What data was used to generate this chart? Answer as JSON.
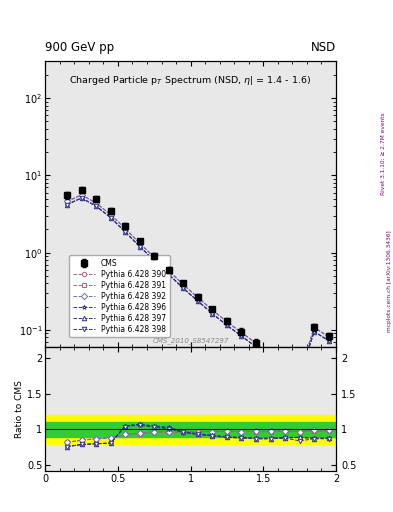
{
  "title_top_left": "900 GeV pp",
  "title_top_right": "NSD",
  "main_title": "Charged Particle p$_T$ Spectrum (NSD, $\\eta$| = 1.4 - 1.6)",
  "right_label_top": "Rivet 3.1.10; ≥ 2.7M events",
  "right_label_bot": "mcplots.cern.ch [arXiv:1306.3436]",
  "dataset_label": "CMS_2010_S8547297",
  "ylabel_ratio": "Ratio to CMS",
  "xlim": [
    0,
    2
  ],
  "ylim_main_log": [
    0.06,
    300
  ],
  "ylim_ratio": [
    0.42,
    2.15
  ],
  "cms_x": [
    0.15,
    0.25,
    0.35,
    0.45,
    0.55,
    0.65,
    0.75,
    0.85,
    0.95,
    1.05,
    1.15,
    1.25,
    1.35,
    1.45,
    1.55,
    1.65,
    1.75,
    1.85,
    1.95
  ],
  "cms_y": [
    5.5,
    6.5,
    5.0,
    3.5,
    2.2,
    1.4,
    0.9,
    0.6,
    0.4,
    0.27,
    0.185,
    0.13,
    0.095,
    0.068,
    0.05,
    0.037,
    0.028,
    0.108,
    0.082
  ],
  "cms_yerr": [
    0.55,
    0.55,
    0.45,
    0.32,
    0.2,
    0.12,
    0.08,
    0.05,
    0.035,
    0.025,
    0.015,
    0.012,
    0.009,
    0.007,
    0.005,
    0.004,
    0.003,
    0.012,
    0.009
  ],
  "pythia_x": [
    0.15,
    0.25,
    0.35,
    0.45,
    0.55,
    0.65,
    0.75,
    0.85,
    0.95,
    1.05,
    1.15,
    1.25,
    1.35,
    1.45,
    1.55,
    1.65,
    1.75,
    1.85,
    1.95
  ],
  "py390_y": [
    4.6,
    5.6,
    4.4,
    3.1,
    2.05,
    1.32,
    0.87,
    0.58,
    0.385,
    0.262,
    0.18,
    0.127,
    0.092,
    0.067,
    0.049,
    0.037,
    0.027,
    0.107,
    0.081
  ],
  "py391_y": [
    4.6,
    5.6,
    4.4,
    3.1,
    2.05,
    1.32,
    0.87,
    0.58,
    0.385,
    0.262,
    0.18,
    0.127,
    0.092,
    0.067,
    0.049,
    0.037,
    0.027,
    0.107,
    0.081
  ],
  "py392_y": [
    4.6,
    5.6,
    4.4,
    3.1,
    2.05,
    1.32,
    0.87,
    0.58,
    0.385,
    0.262,
    0.18,
    0.127,
    0.092,
    0.067,
    0.049,
    0.037,
    0.027,
    0.107,
    0.081
  ],
  "py396_y": [
    4.2,
    5.1,
    4.0,
    2.85,
    1.85,
    1.2,
    0.79,
    0.52,
    0.345,
    0.235,
    0.162,
    0.114,
    0.083,
    0.06,
    0.044,
    0.033,
    0.025,
    0.095,
    0.072
  ],
  "py397_y": [
    4.2,
    5.1,
    4.0,
    2.85,
    1.85,
    1.2,
    0.79,
    0.52,
    0.345,
    0.235,
    0.162,
    0.114,
    0.083,
    0.06,
    0.044,
    0.033,
    0.025,
    0.095,
    0.072
  ],
  "py398_y": [
    4.2,
    5.1,
    4.0,
    2.85,
    1.85,
    1.2,
    0.79,
    0.52,
    0.345,
    0.235,
    0.162,
    0.114,
    0.083,
    0.06,
    0.044,
    0.033,
    0.025,
    0.095,
    0.072
  ],
  "ratio390": [
    0.82,
    0.85,
    0.87,
    0.88,
    0.93,
    0.94,
    0.96,
    0.96,
    0.96,
    0.97,
    0.97,
    0.97,
    0.97,
    0.97,
    0.97,
    0.98,
    0.97,
    0.98,
    0.98
  ],
  "ratio391": [
    0.82,
    0.85,
    0.87,
    0.88,
    0.93,
    0.94,
    0.96,
    0.96,
    0.96,
    0.97,
    0.97,
    0.97,
    0.97,
    0.97,
    0.97,
    0.98,
    0.97,
    0.98,
    0.98
  ],
  "ratio392": [
    0.82,
    0.85,
    0.87,
    0.88,
    0.93,
    0.95,
    0.97,
    0.97,
    0.97,
    0.97,
    0.97,
    0.98,
    0.97,
    0.98,
    0.98,
    0.98,
    0.97,
    0.99,
    0.99
  ],
  "ratio396": [
    0.76,
    0.79,
    0.8,
    0.81,
    1.05,
    1.07,
    1.05,
    1.03,
    0.97,
    0.94,
    0.92,
    0.9,
    0.89,
    0.88,
    0.88,
    0.89,
    0.89,
    0.88,
    0.88
  ],
  "ratio397": [
    0.76,
    0.79,
    0.8,
    0.81,
    1.05,
    1.07,
    1.04,
    1.02,
    0.96,
    0.93,
    0.91,
    0.89,
    0.88,
    0.87,
    0.87,
    0.88,
    0.89,
    0.87,
    0.88
  ],
  "ratio398": [
    0.76,
    0.79,
    0.8,
    0.81,
    1.04,
    1.06,
    1.03,
    1.01,
    0.96,
    0.93,
    0.91,
    0.89,
    0.88,
    0.87,
    0.87,
    0.88,
    0.84,
    0.87,
    0.87
  ],
  "color390": "#b06080",
  "color391": "#b06080",
  "color392": "#7070b0",
  "color396": "#303090",
  "color397": "#303090",
  "color398": "#303090",
  "band_green_lo": 0.9,
  "band_green_hi": 1.1,
  "band_yellow_lo": 0.8,
  "band_yellow_hi": 1.2,
  "bg_color": "#e8e8e8"
}
